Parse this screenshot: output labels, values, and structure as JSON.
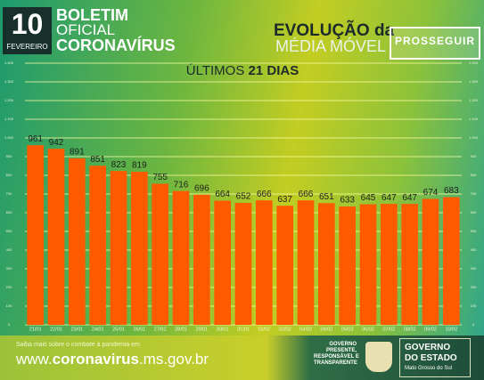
{
  "header": {
    "day": "10",
    "month": "FEVEREIRO",
    "bulletin": [
      "BOLETIM",
      "OFICIAL",
      "CORONAVÍRUS"
    ],
    "heading": [
      "EVOLUÇÃO da",
      "MÉDIA MÓVEL"
    ],
    "badge": "PROSSEGUIR"
  },
  "chart_data": {
    "type": "bar",
    "title": [
      "ÚLTIMOS",
      "21 DIAS"
    ],
    "categories": [
      "21/01",
      "22/01",
      "23/01",
      "24/01",
      "25/01",
      "26/01",
      "27/01",
      "28/01",
      "29/01",
      "30/01",
      "31/01",
      "01/02",
      "02/02",
      "03/02",
      "04/02",
      "05/02",
      "06/02",
      "07/02",
      "08/02",
      "09/02",
      "10/02"
    ],
    "values": [
      961,
      942,
      891,
      851,
      823,
      819,
      755,
      716,
      696,
      664,
      652,
      666,
      637,
      666,
      651,
      633,
      645,
      647,
      647,
      674,
      683
    ],
    "color": "#ff5a00",
    "ylim": [
      0,
      1400
    ],
    "yticks": [
      0,
      100,
      200,
      300,
      400,
      500,
      600,
      700,
      800,
      900,
      {
        "value": 1000,
        "label": "1.000"
      },
      {
        "value": 1100,
        "label": "1.100"
      },
      {
        "value": 1200,
        "label": "1.200"
      },
      {
        "value": 1300,
        "label": "1.300"
      },
      {
        "value": 1400,
        "label": "1.400"
      }
    ],
    "grid": true
  },
  "footer": {
    "note": "Saiba mais sobre o combate à pandemia em",
    "url": [
      "www.",
      "coronavirus",
      ".ms.gov.br"
    ],
    "slogan": [
      "GOVERNO",
      "PRESENTE,",
      "RESPONSÁVEL E",
      "TRANSPARENTE"
    ],
    "government": [
      "GOVERNO",
      "DO ESTADO",
      "Mato Grosso do Sul"
    ]
  }
}
